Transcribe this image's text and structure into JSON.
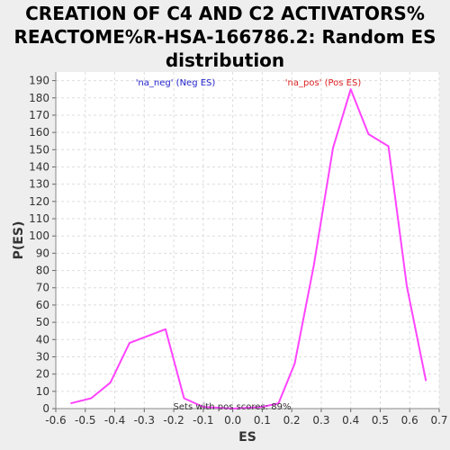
{
  "chart_data": {
    "type": "line",
    "title_lines": [
      "CREATION OF C4 AND C2 ACTIVATORS%",
      "REACTOME%R-HSA-166786.2: Random ES",
      "distribution"
    ],
    "xlabel": "ES",
    "ylabel": "P(ES)",
    "xlim": [
      -0.6,
      0.7
    ],
    "ylim": [
      0,
      195
    ],
    "xticks": [
      -0.6,
      -0.5,
      -0.4,
      -0.3,
      -0.2,
      -0.1,
      0.0,
      0.1,
      0.2,
      0.3,
      0.4,
      0.5,
      0.6,
      0.7
    ],
    "xtick_labels": [
      "-0.6",
      "-0.5",
      "-0.4",
      "-0.3",
      "-0.2",
      "-0.1",
      "0.0",
      "0.1",
      "0.2",
      "0.3",
      "0.4",
      "0.5",
      "0.6",
      "0.7"
    ],
    "yticks": [
      0,
      10,
      20,
      30,
      40,
      50,
      60,
      70,
      80,
      90,
      100,
      110,
      120,
      130,
      140,
      150,
      160,
      170,
      180,
      190
    ],
    "grid": true,
    "series": [
      {
        "color": "#ff44ff",
        "x": [
          -0.55,
          -0.48,
          -0.415,
          -0.35,
          -0.228,
          -0.165,
          -0.1,
          0.0,
          0.1,
          0.155,
          0.21,
          0.275,
          0.34,
          0.4,
          0.46,
          0.528,
          0.59,
          0.655
        ],
        "y": [
          3,
          6,
          15,
          38,
          46,
          6,
          1,
          0,
          1,
          3,
          26,
          83,
          151,
          185,
          159,
          152,
          71,
          16
        ]
      }
    ],
    "annotations": [
      {
        "text": "'na_neg' (Neg ES)",
        "color": "#2222cc"
      },
      {
        "text": "'na_pos' (Pos ES)",
        "color": "#dd2222"
      },
      {
        "text": "Sets with pos scores: 89%",
        "color": "#333333"
      }
    ]
  }
}
